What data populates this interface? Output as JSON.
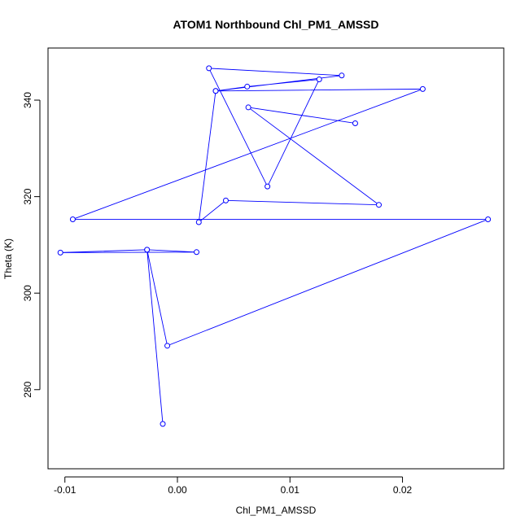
{
  "chart_data": {
    "type": "line",
    "title": "ATOM1 Northbound Chl_PM1_AMSSD",
    "xlabel": "Chl_PM1_AMSSD",
    "ylabel": "Theta (K)",
    "xlim": [
      -0.0115,
      0.029
    ],
    "ylim": [
      263.6,
      350.8
    ],
    "xticks": [
      -0.01,
      0.0,
      0.01,
      0.02
    ],
    "xtick_labels": [
      "-0.01",
      "0.00",
      "0.01",
      "0.02"
    ],
    "yticks": [
      280,
      300,
      320,
      340
    ],
    "ytick_labels": [
      "280",
      "300",
      "320",
      "340"
    ],
    "grid": false,
    "legend": "none",
    "color": "#0000ff",
    "series": [
      {
        "x": [
          -0.0013,
          -0.0027,
          -0.0104,
          0.0017,
          -0.0027,
          -0.0009,
          0.0276,
          -0.0093,
          0.0218,
          0.0034,
          0.0062,
          0.0126,
          0.008,
          0.0028,
          0.0146,
          0.0034,
          0.0019,
          0.0043,
          0.0179,
          0.0063,
          0.0158
        ],
        "y": [
          272.9,
          309.0,
          308.4,
          308.5,
          309.0,
          289.1,
          315.3,
          315.3,
          342.3,
          341.9,
          342.8,
          344.3,
          322.1,
          346.6,
          345.1,
          341.9,
          314.7,
          319.2,
          318.3,
          338.5,
          335.2
        ]
      }
    ]
  }
}
